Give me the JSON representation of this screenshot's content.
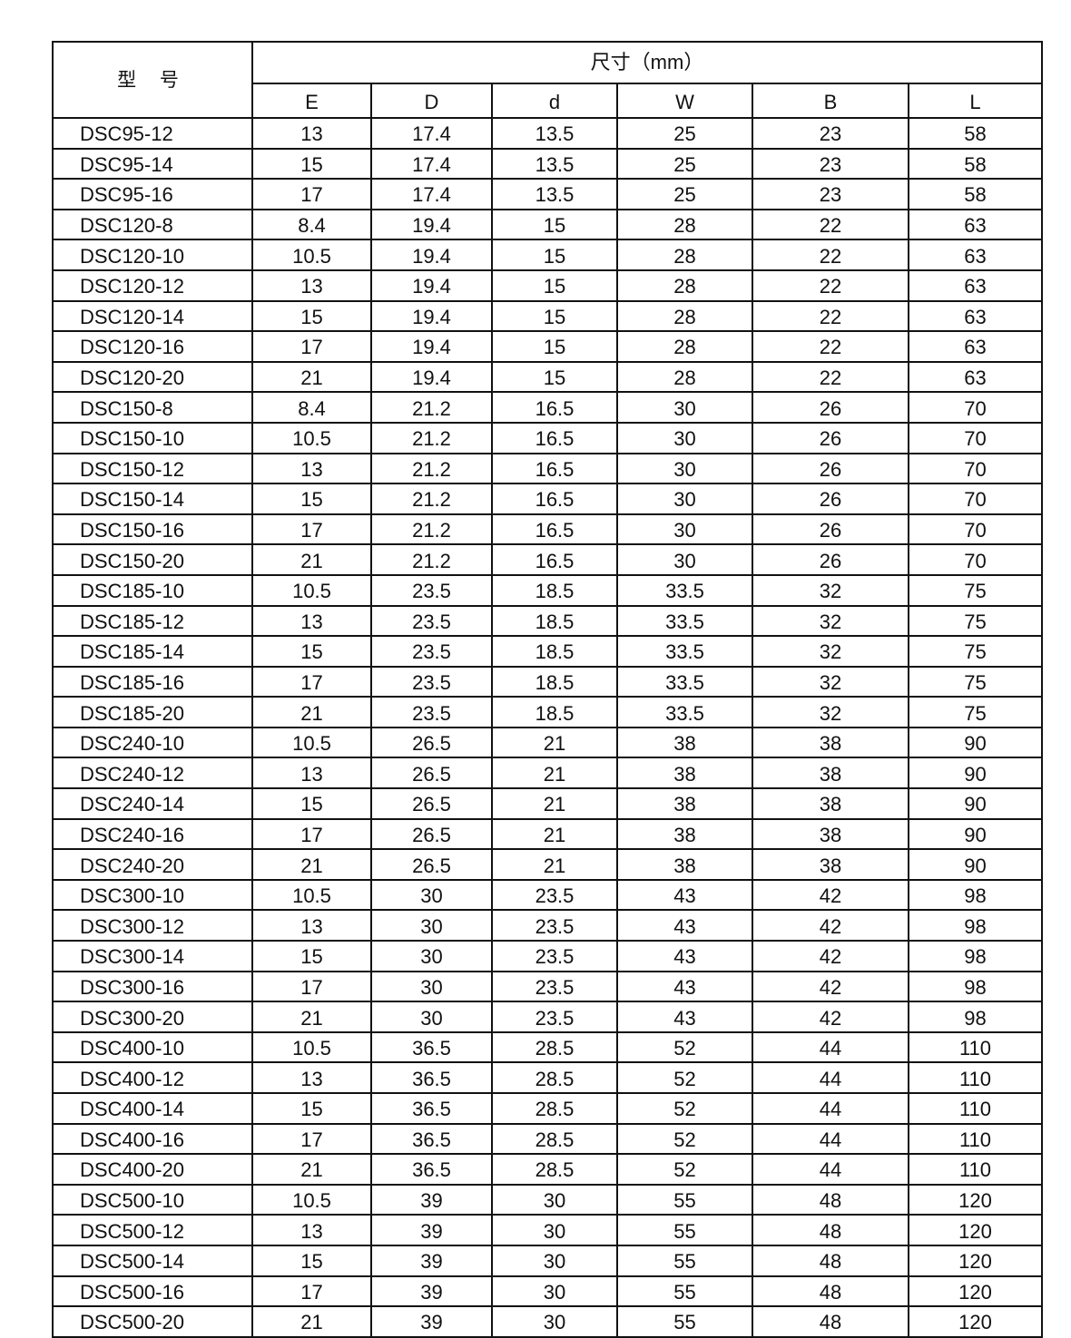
{
  "table": {
    "model_header": "型 号",
    "dimension_header": "尺寸（mm）",
    "columns": [
      "E",
      "D",
      "d",
      "W",
      "B",
      "L"
    ],
    "rows": [
      [
        "DSC95-12",
        "13",
        "17.4",
        "13.5",
        "25",
        "23",
        "58"
      ],
      [
        "DSC95-14",
        "15",
        "17.4",
        "13.5",
        "25",
        "23",
        "58"
      ],
      [
        "DSC95-16",
        "17",
        "17.4",
        "13.5",
        "25",
        "23",
        "58"
      ],
      [
        "DSC120-8",
        "8.4",
        "19.4",
        "15",
        "28",
        "22",
        "63"
      ],
      [
        "DSC120-10",
        "10.5",
        "19.4",
        "15",
        "28",
        "22",
        "63"
      ],
      [
        "DSC120-12",
        "13",
        "19.4",
        "15",
        "28",
        "22",
        "63"
      ],
      [
        "DSC120-14",
        "15",
        "19.4",
        "15",
        "28",
        "22",
        "63"
      ],
      [
        "DSC120-16",
        "17",
        "19.4",
        "15",
        "28",
        "22",
        "63"
      ],
      [
        "DSC120-20",
        "21",
        "19.4",
        "15",
        "28",
        "22",
        "63"
      ],
      [
        "DSC150-8",
        "8.4",
        "21.2",
        "16.5",
        "30",
        "26",
        "70"
      ],
      [
        "DSC150-10",
        "10.5",
        "21.2",
        "16.5",
        "30",
        "26",
        "70"
      ],
      [
        "DSC150-12",
        "13",
        "21.2",
        "16.5",
        "30",
        "26",
        "70"
      ],
      [
        "DSC150-14",
        "15",
        "21.2",
        "16.5",
        "30",
        "26",
        "70"
      ],
      [
        "DSC150-16",
        "17",
        "21.2",
        "16.5",
        "30",
        "26",
        "70"
      ],
      [
        "DSC150-20",
        "21",
        "21.2",
        "16.5",
        "30",
        "26",
        "70"
      ],
      [
        "DSC185-10",
        "10.5",
        "23.5",
        "18.5",
        "33.5",
        "32",
        "75"
      ],
      [
        "DSC185-12",
        "13",
        "23.5",
        "18.5",
        "33.5",
        "32",
        "75"
      ],
      [
        "DSC185-14",
        "15",
        "23.5",
        "18.5",
        "33.5",
        "32",
        "75"
      ],
      [
        "DSC185-16",
        "17",
        "23.5",
        "18.5",
        "33.5",
        "32",
        "75"
      ],
      [
        "DSC185-20",
        "21",
        "23.5",
        "18.5",
        "33.5",
        "32",
        "75"
      ],
      [
        "DSC240-10",
        "10.5",
        "26.5",
        "21",
        "38",
        "38",
        "90"
      ],
      [
        "DSC240-12",
        "13",
        "26.5",
        "21",
        "38",
        "38",
        "90"
      ],
      [
        "DSC240-14",
        "15",
        "26.5",
        "21",
        "38",
        "38",
        "90"
      ],
      [
        "DSC240-16",
        "17",
        "26.5",
        "21",
        "38",
        "38",
        "90"
      ],
      [
        "DSC240-20",
        "21",
        "26.5",
        "21",
        "38",
        "38",
        "90"
      ],
      [
        "DSC300-10",
        "10.5",
        "30",
        "23.5",
        "43",
        "42",
        "98"
      ],
      [
        "DSC300-12",
        "13",
        "30",
        "23.5",
        "43",
        "42",
        "98"
      ],
      [
        "DSC300-14",
        "15",
        "30",
        "23.5",
        "43",
        "42",
        "98"
      ],
      [
        "DSC300-16",
        "17",
        "30",
        "23.5",
        "43",
        "42",
        "98"
      ],
      [
        "DSC300-20",
        "21",
        "30",
        "23.5",
        "43",
        "42",
        "98"
      ],
      [
        "DSC400-10",
        "10.5",
        "36.5",
        "28.5",
        "52",
        "44",
        "110"
      ],
      [
        "DSC400-12",
        "13",
        "36.5",
        "28.5",
        "52",
        "44",
        "110"
      ],
      [
        "DSC400-14",
        "15",
        "36.5",
        "28.5",
        "52",
        "44",
        "110"
      ],
      [
        "DSC400-16",
        "17",
        "36.5",
        "28.5",
        "52",
        "44",
        "110"
      ],
      [
        "DSC400-20",
        "21",
        "36.5",
        "28.5",
        "52",
        "44",
        "110"
      ],
      [
        "DSC500-10",
        "10.5",
        "39",
        "30",
        "55",
        "48",
        "120"
      ],
      [
        "DSC500-12",
        "13",
        "39",
        "30",
        "55",
        "48",
        "120"
      ],
      [
        "DSC500-14",
        "15",
        "39",
        "30",
        "55",
        "48",
        "120"
      ],
      [
        "DSC500-16",
        "17",
        "39",
        "30",
        "55",
        "48",
        "120"
      ],
      [
        "DSC500-20",
        "21",
        "39",
        "30",
        "55",
        "48",
        "120"
      ]
    ]
  }
}
